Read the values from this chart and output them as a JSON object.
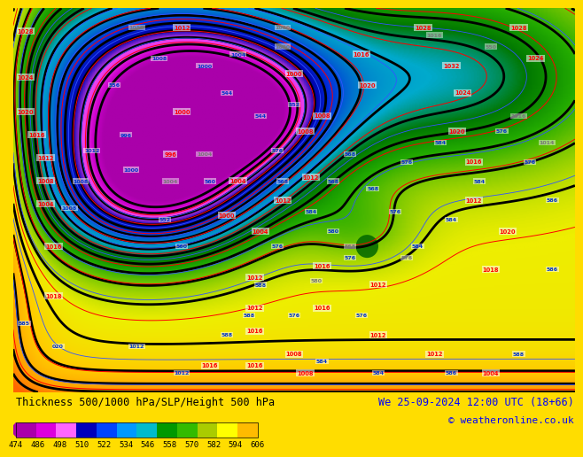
{
  "title_left": "Thickness 500/1000 hPa/SLP/Height 500 hPa",
  "title_right": "We 25-09-2024 12:00 UTC (18+66)",
  "copyright": "© weatheronline.co.uk",
  "colorbar_values": [
    474,
    486,
    498,
    510,
    522,
    534,
    546,
    558,
    570,
    582,
    594,
    606
  ],
  "colorbar_colors": [
    "#aa00aa",
    "#dd00dd",
    "#ff66ff",
    "#0000bb",
    "#0044ff",
    "#0099ff",
    "#00bbcc",
    "#009900",
    "#33bb00",
    "#aacc00",
    "#ffff00",
    "#ffbb00"
  ],
  "bottom_strip_color": "#ffdd00",
  "title_fontsize": 8.5,
  "copyright_fontsize": 8,
  "colorbar_label_fontsize": 6.5,
  "thickness_colors": [
    "#aa00aa",
    "#cc00cc",
    "#ee44ee",
    "#0000aa",
    "#0033dd",
    "#0077cc",
    "#00aacc",
    "#007700",
    "#22aa00",
    "#88cc00",
    "#eeee00",
    "#ffcc00",
    "#ffaa00",
    "#ff8800",
    "#ff6600"
  ],
  "map_figsize": [
    6.34,
    4.9
  ],
  "map_dpi": 100
}
